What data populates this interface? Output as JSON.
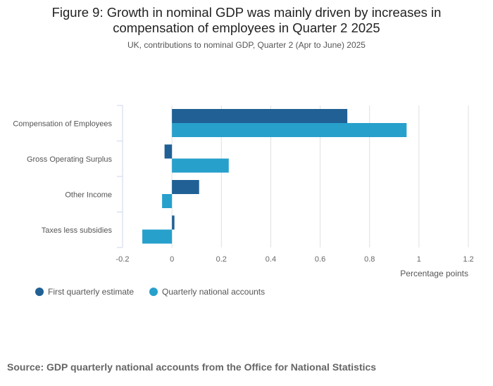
{
  "chart_data": {
    "type": "bar",
    "orientation": "horizontal",
    "title": "Figure 9: Growth in nominal GDP was mainly driven by increases in compensation of employees in Quarter 2 2025",
    "title_lines": [
      "Figure 9: Growth in nominal GDP was mainly driven by increases in",
      "compensation of employees in Quarter 2 2025"
    ],
    "subtitle": "UK, contributions to nominal GDP, Quarter 2 (Apr to June) 2025",
    "categories": [
      "Compensation of Employees",
      "Gross Operating Surplus",
      "Other Income",
      "Taxes less subsidies"
    ],
    "series": [
      {
        "name": "First quarterly estimate",
        "color": "#206095",
        "values": [
          0.71,
          -0.03,
          0.11,
          0.01
        ]
      },
      {
        "name": "Quarterly national accounts",
        "color": "#27a0cc",
        "values": [
          0.95,
          0.23,
          -0.04,
          -0.12
        ]
      }
    ],
    "xlabel": "Percentage points",
    "ylabel": "",
    "xlim": [
      -0.2,
      1.2
    ],
    "xticks": [
      "-0.2",
      "0",
      "0.2",
      "0.4",
      "0.6",
      "0.8",
      "1",
      "1.2"
    ],
    "grid": true,
    "legend_position": "bottom-left"
  },
  "source": "Source: GDP quarterly national accounts from the Office for National Statistics"
}
